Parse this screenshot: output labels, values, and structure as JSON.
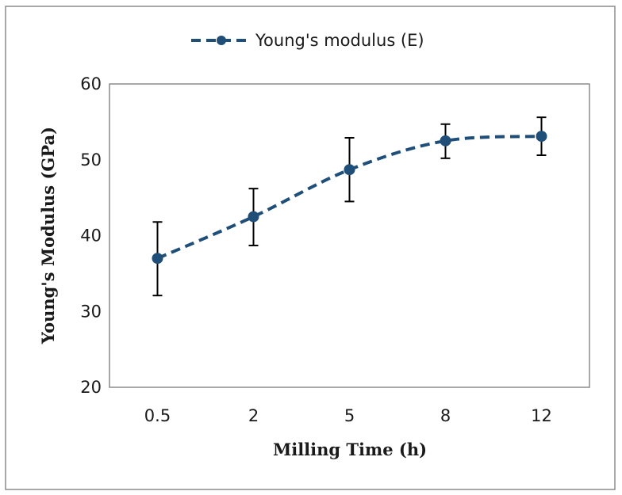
{
  "chart_data": {
    "type": "line",
    "title": "",
    "xlabel": "Milling Time (h)",
    "ylabel": "Young's Modulus (GPa)",
    "categories": [
      "0.5",
      "2",
      "5",
      "8",
      "12"
    ],
    "ylim": [
      20,
      60
    ],
    "yticks": [
      20,
      30,
      40,
      50,
      60
    ],
    "grid": false,
    "legend_position": "top-center",
    "series": [
      {
        "name": "Young's modulus (E)",
        "color": "#1f4e79",
        "line_style": "dashed",
        "marker": "circle",
        "values": [
          37.0,
          42.5,
          48.7,
          52.5,
          53.1
        ],
        "error_low": [
          32.1,
          38.7,
          44.5,
          50.2,
          50.6
        ],
        "error_high": [
          41.8,
          46.2,
          52.9,
          54.7,
          55.6
        ]
      }
    ]
  }
}
